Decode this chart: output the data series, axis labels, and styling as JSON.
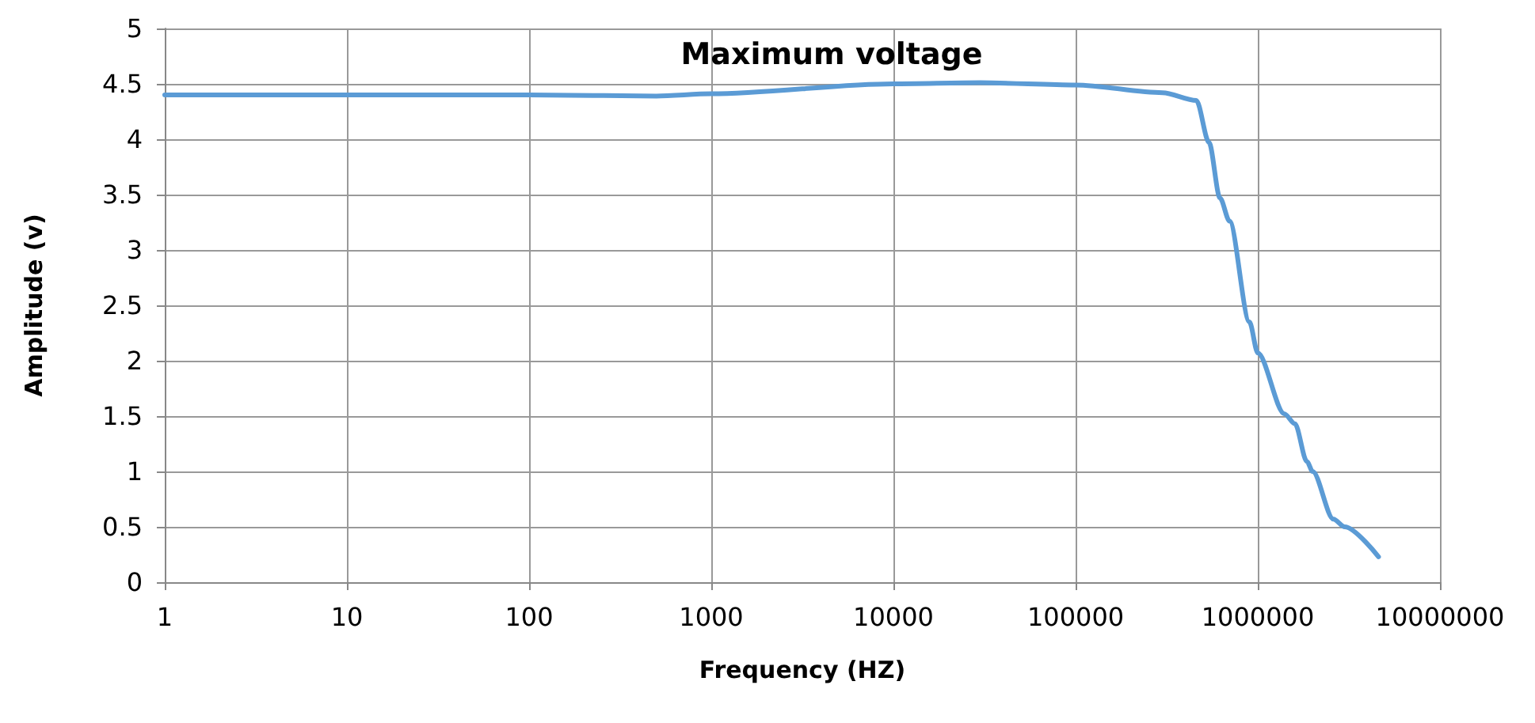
{
  "chart_data": {
    "type": "line",
    "title": "Maximum voltage",
    "xlabel": "Frequency (HZ)",
    "ylabel": "Amplitude (v)",
    "log": "x",
    "grid": true,
    "marker": "none",
    "line_style": "solid",
    "xlim": [
      1,
      10000000
    ],
    "xticks": [
      1,
      10,
      100,
      1000,
      10000,
      100000,
      1000000,
      10000000
    ],
    "ylim": [
      0,
      5
    ],
    "yticks": [
      0,
      0.5,
      1,
      1.5,
      2,
      2.5,
      3,
      3.5,
      4,
      4.5,
      5
    ],
    "series": [
      {
        "color": "#5b9bd5",
        "x": [
          1,
          10,
          100,
          500,
          1000,
          10000,
          30000,
          100000,
          300000,
          460000,
          540000,
          620000,
          700000,
          900000,
          1000000,
          1400000,
          1600000,
          1860000,
          2000000,
          2600000,
          3000000,
          4600000
        ],
        "values": [
          4.4,
          4.4,
          4.4,
          4.39,
          4.41,
          4.5,
          4.51,
          4.49,
          4.42,
          4.35,
          3.97,
          3.47,
          3.26,
          2.35,
          2.07,
          1.52,
          1.43,
          1.09,
          1.0,
          0.57,
          0.5,
          0.23
        ]
      }
    ]
  }
}
